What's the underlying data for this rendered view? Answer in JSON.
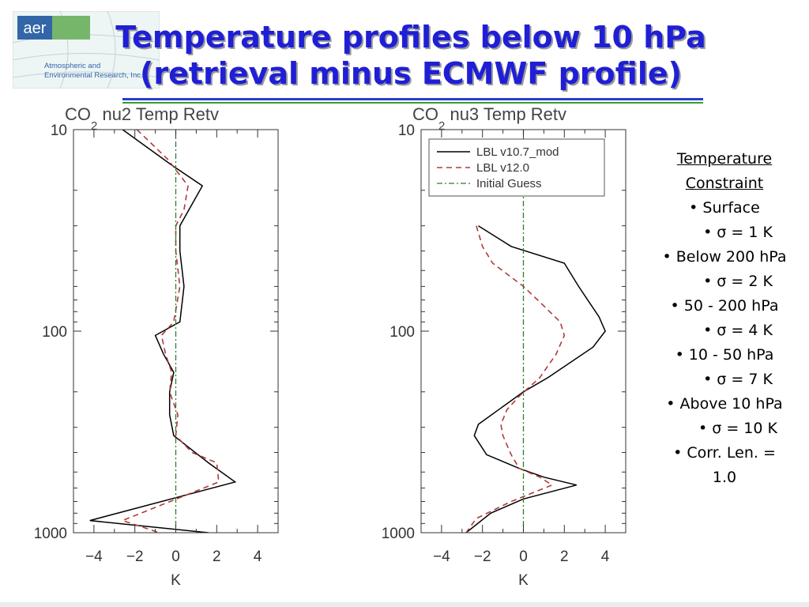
{
  "logo": {
    "wordmark": "aer",
    "line1": "Atmospheric and",
    "line2": "Environmental Research, Inc."
  },
  "title": {
    "line1": "Temperature profiles below 10 hPa",
    "line2": "(retrieval minus ECMWF profile)"
  },
  "constraints": {
    "heading_line1": "Temperature",
    "heading_line2": "Constraint",
    "items": [
      {
        "label": "• Surface",
        "sigma": "• σ = 1 K"
      },
      {
        "label": "• Below 200 hPa",
        "sigma": "• σ = 2 K"
      },
      {
        "label": "• 50 - 200 hPa",
        "sigma": "• σ = 4 K"
      },
      {
        "label": "• 10 - 50 hPa",
        "sigma": "• σ = 7 K"
      },
      {
        "label": "• Above 10 hPa",
        "sigma": "• σ = 10 K"
      }
    ],
    "corr_line1": "• Corr. Len. =",
    "corr_line2": "1.0"
  },
  "colors": {
    "title": "#1f1fd6",
    "series_solid": "#000000",
    "series_dashed": "#b03a3a",
    "series_dashdot": "#2e7d2e"
  },
  "chart_data": [
    {
      "type": "line",
      "title_pre": "CO",
      "title_sub": "2",
      "title_post": " nu2  Temp  Retv",
      "xlabel": "K",
      "xlim": [
        -5,
        5
      ],
      "ylim": [
        10,
        1000
      ],
      "y_scale": "log",
      "y_inverted": true,
      "x_ticks": [
        -4,
        -2,
        0,
        2,
        4
      ],
      "y_ticks": [
        10,
        100,
        1000
      ],
      "legend": null,
      "series": [
        {
          "style": "solid",
          "points": [
            [
              -2.6,
              10
            ],
            [
              -0.2,
              15
            ],
            [
              1.3,
              19
            ],
            [
              0.2,
              30
            ],
            [
              0.2,
              40
            ],
            [
              0.4,
              60
            ],
            [
              0.2,
              90
            ],
            [
              -1.0,
              105
            ],
            [
              -0.6,
              130
            ],
            [
              -0.1,
              160
            ],
            [
              -0.3,
              200
            ],
            [
              -0.3,
              260
            ],
            [
              -0.1,
              330
            ],
            [
              1.6,
              450
            ],
            [
              2.9,
              560
            ],
            [
              -4.2,
              870
            ],
            [
              1.6,
              1000
            ]
          ]
        },
        {
          "style": "dashed",
          "points": [
            [
              -1.9,
              10
            ],
            [
              -0.4,
              14
            ],
            [
              0.6,
              19
            ],
            [
              0.4,
              25
            ],
            [
              0.0,
              30
            ],
            [
              0.0,
              40
            ],
            [
              0.2,
              60
            ],
            [
              -0.1,
              90
            ],
            [
              -0.7,
              105
            ],
            [
              -0.5,
              130
            ],
            [
              -0.2,
              160
            ],
            [
              -0.3,
              200
            ],
            [
              0.1,
              260
            ],
            [
              0.0,
              330
            ],
            [
              0.8,
              400
            ],
            [
              2.0,
              450
            ],
            [
              2.1,
              560
            ],
            [
              -2.6,
              870
            ],
            [
              -0.8,
              1000
            ]
          ]
        },
        {
          "style": "dashdot",
          "points": [
            [
              0,
              10
            ],
            [
              0,
              1000
            ]
          ]
        }
      ]
    },
    {
      "type": "line",
      "title_pre": "CO",
      "title_sub": "2",
      "title_post": " nu3  Temp  Retv",
      "xlabel": "K",
      "xlim": [
        -5,
        5
      ],
      "ylim": [
        10,
        1000
      ],
      "y_scale": "log",
      "y_inverted": true,
      "x_ticks": [
        -4,
        -2,
        0,
        2,
        4
      ],
      "y_ticks": [
        10,
        100,
        1000
      ],
      "legend": {
        "position": "top-right",
        "entries": [
          "LBL v10.7_mod",
          "LBL v12.0",
          "Initial Guess"
        ]
      },
      "series": [
        {
          "name": "LBL v10.7_mod",
          "style": "solid",
          "points": [
            [
              -2.2,
              30
            ],
            [
              -0.6,
              38
            ],
            [
              2.0,
              46
            ],
            [
              2.7,
              60
            ],
            [
              3.7,
              85
            ],
            [
              4.0,
              100
            ],
            [
              3.4,
              120
            ],
            [
              1.2,
              170
            ],
            [
              0.0,
              200
            ],
            [
              -1.2,
              245
            ],
            [
              -2.2,
              290
            ],
            [
              -2.4,
              330
            ],
            [
              -1.8,
              410
            ],
            [
              -0.2,
              480
            ],
            [
              1.0,
              530
            ],
            [
              2.6,
              580
            ],
            [
              0.0,
              680
            ],
            [
              -1.6,
              800
            ],
            [
              -2.8,
              1000
            ]
          ]
        },
        {
          "name": "LBL v12.0",
          "style": "dashed",
          "points": [
            [
              -2.3,
              30
            ],
            [
              -2.0,
              38
            ],
            [
              -1.5,
              46
            ],
            [
              0.0,
              60
            ],
            [
              1.0,
              75
            ],
            [
              1.8,
              90
            ],
            [
              2.0,
              105
            ],
            [
              1.6,
              130
            ],
            [
              0.8,
              170
            ],
            [
              -0.2,
              210
            ],
            [
              -0.8,
              245
            ],
            [
              -1.1,
              290
            ],
            [
              -1.0,
              330
            ],
            [
              -0.6,
              410
            ],
            [
              -0.2,
              480
            ],
            [
              0.8,
              530
            ],
            [
              1.4,
              580
            ],
            [
              -0.6,
              700
            ],
            [
              -2.3,
              850
            ],
            [
              -2.8,
              1000
            ]
          ]
        },
        {
          "name": "Initial Guess",
          "style": "dashdot",
          "points": [
            [
              0,
              10
            ],
            [
              0,
              1000
            ]
          ]
        }
      ]
    }
  ]
}
